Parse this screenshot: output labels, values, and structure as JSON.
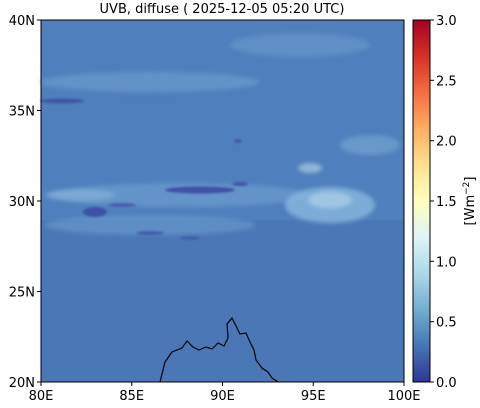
{
  "title": "UVB, diffuse ( 2025-12-05 05:20 UTC)",
  "map": {
    "lon_ticks": [
      "80E",
      "85E",
      "90E",
      "95E",
      "100E"
    ],
    "lat_ticks": [
      "40N",
      "35N",
      "30N",
      "25N",
      "20N"
    ],
    "lon_range": [
      80,
      100
    ],
    "lat_range": [
      20,
      40
    ]
  },
  "colorbar": {
    "ticks": [
      "3.0",
      "2.5",
      "2.0",
      "1.5",
      "1.0",
      "0.5",
      "0.0"
    ],
    "range": [
      0.0,
      3.0
    ],
    "colormap": "RdYlBu_r",
    "colors": [
      "#313695",
      "#4575b4",
      "#74add1",
      "#abd9e9",
      "#e0f3f8",
      "#ffffbf",
      "#fee090",
      "#fdae61",
      "#f46d43",
      "#d73027",
      "#a50026"
    ],
    "unit_prefix": "[Wm",
    "unit_sup": "−2",
    "unit_suffix": "]"
  },
  "colors": {
    "field_base": "#4a78b6",
    "field_light": "#6f9ed0",
    "cloud": "#a9cde6",
    "dark": "#3a4aa0",
    "coast": "#000000"
  }
}
